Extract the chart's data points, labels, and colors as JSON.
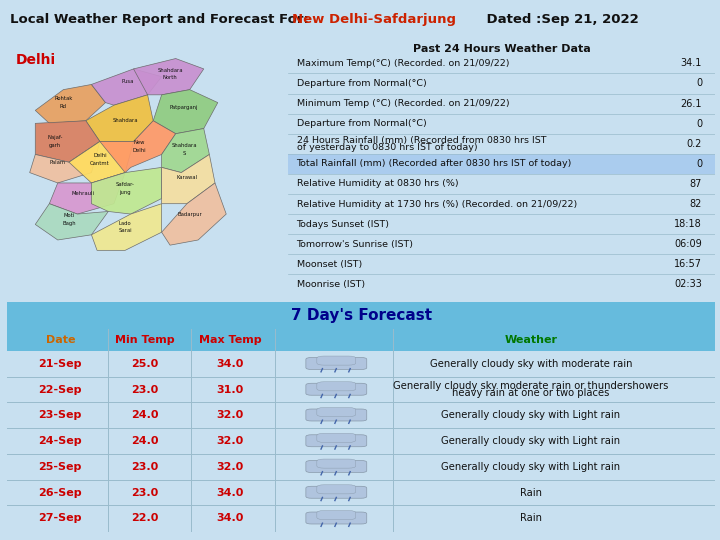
{
  "title_prefix": "Local Weather Report and Forecast For: ",
  "title_station": "New Delhi-Safdarjung",
  "title_date": "    Dated :Sep 21, 2022",
  "bg_color": "#c8e0f0",
  "past24_title": "Past 24 Hours Weather Data",
  "past24_rows": [
    [
      "Maximum Temp(°C) (Recorded. on 21/09/22)",
      "34.1"
    ],
    [
      "Departure from Normal(°C)",
      "0"
    ],
    [
      "Minimum Temp (°C) (Recorded. on 21/09/22)",
      "26.1"
    ],
    [
      "Departure from Normal(°C)",
      "0"
    ],
    [
      "24 Hours Rainfall (mm) (Recorded from 0830 hrs IST\nof yesterday to 0830 hrs IST of today)",
      "0.2"
    ],
    [
      "Total Rainfall (mm) (Recorded after 0830 hrs IST of today)",
      "0"
    ],
    [
      "Relative Humidity at 0830 hrs (%)",
      "87"
    ],
    [
      "Relative Humidity at 1730 hrs (%) (Recorded. on 21/09/22)",
      "82"
    ],
    [
      "Todays Sunset (IST)",
      "18:18"
    ],
    [
      "Tomorrow's Sunrise (IST)",
      "06:09"
    ],
    [
      "Moonset (IST)",
      "16:57"
    ],
    [
      "Moonrise (IST)",
      "02:33"
    ]
  ],
  "highlight_row": 5,
  "forecast_title": "7 Day's Forecast",
  "forecast_headers": [
    "Date",
    "Min Temp",
    "Max Temp",
    "",
    "Weather"
  ],
  "forecast_rows": [
    [
      "21-Sep",
      "25.0",
      "34.0",
      "Generally cloudy sky with moderate rain"
    ],
    [
      "22-Sep",
      "23.0",
      "31.0",
      "Generally cloudy sky moderate rain or thundershowers\nheavy rain at one or two places"
    ],
    [
      "23-Sep",
      "24.0",
      "32.0",
      "Generally cloudy sky with Light rain"
    ],
    [
      "24-Sep",
      "24.0",
      "32.0",
      "Generally cloudy sky with Light rain"
    ],
    [
      "25-Sep",
      "23.0",
      "32.0",
      "Generally cloudy sky with Light rain"
    ],
    [
      "26-Sep",
      "23.0",
      "34.0",
      "Rain"
    ],
    [
      "27-Sep",
      "22.0",
      "34.0",
      "Rain"
    ]
  ],
  "red_color": "#cc0000",
  "orange_color": "#cc6600",
  "green_color": "#007700",
  "table_border": "#5599bb",
  "highlight_bg": "#aaccee",
  "forecast_header_bg": "#66bbdd",
  "col_header_bg": "#66bbdd",
  "row_sep_color": "#99bbcc",
  "vert_sep_color": "#99bbcc"
}
